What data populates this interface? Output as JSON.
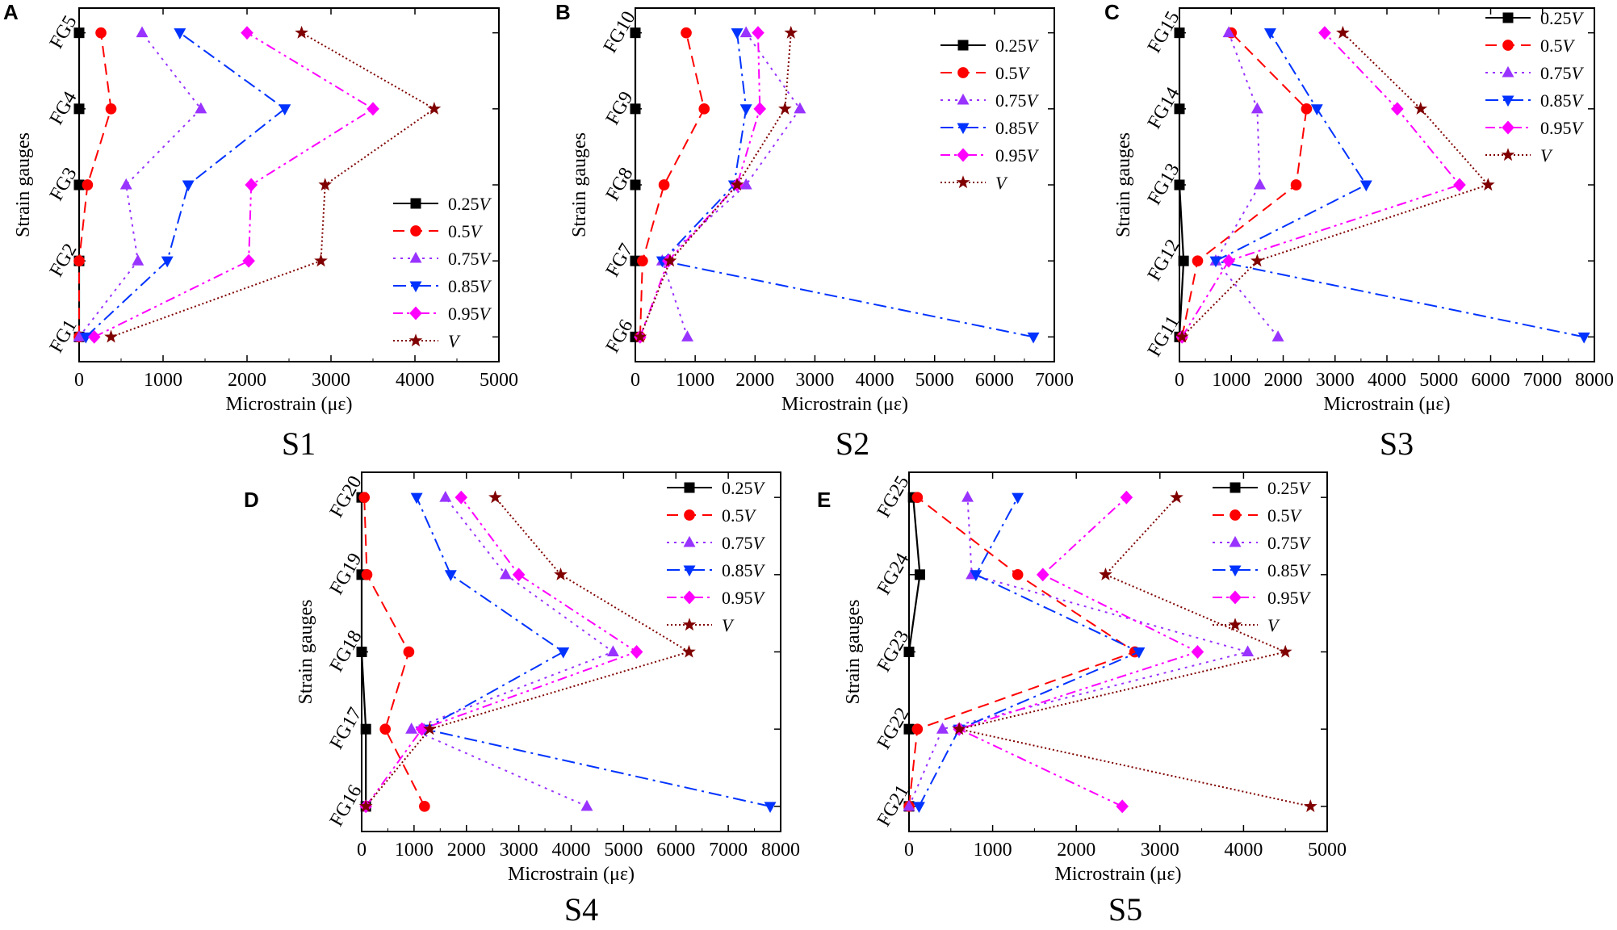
{
  "legend_entries": [
    {
      "key": "s025",
      "label": "0.25",
      "suffix": "V",
      "color": "#000000",
      "dash": "",
      "marker": "square"
    },
    {
      "key": "s05",
      "label": "0.5",
      "suffix": "V",
      "color": "#ff0000",
      "dash": "14 8",
      "marker": "circle"
    },
    {
      "key": "s075",
      "label": "0.75",
      "suffix": "V",
      "color": "#9933ff",
      "dash": "3 6",
      "marker": "triangle-up"
    },
    {
      "key": "s085",
      "label": "0.85",
      "suffix": "V",
      "color": "#0033ff",
      "dash": "16 6 3 6",
      "marker": "triangle-down"
    },
    {
      "key": "s095",
      "label": "0.95",
      "suffix": "V",
      "color": "#ff00ff",
      "dash": "12 5 3 5 3 5",
      "marker": "diamond"
    },
    {
      "key": "sV",
      "label": "",
      "suffix": "V",
      "color": "#800000",
      "dash": "2 3",
      "marker": "star"
    }
  ],
  "chart_data": [
    {
      "type": "line",
      "letter": "A",
      "title": "S1",
      "xlabel": "Microstrain (με)",
      "ylabel": "Strain gauges",
      "xlim": [
        0,
        5000
      ],
      "xticks": [
        0,
        1000,
        2000,
        3000,
        4000,
        5000
      ],
      "categories": [
        "FG1",
        "FG2",
        "FG3",
        "FG4",
        "FG5"
      ],
      "series": [
        {
          "name": "0.25V",
          "values": [
            0,
            0,
            0,
            0,
            0
          ]
        },
        {
          "name": "0.5V",
          "values": [
            0,
            0,
            100,
            380,
            260
          ]
        },
        {
          "name": "0.75V",
          "values": [
            0,
            700,
            560,
            1450,
            750
          ]
        },
        {
          "name": "0.85V",
          "values": [
            80,
            1050,
            1300,
            2450,
            1200
          ]
        },
        {
          "name": "0.95V",
          "values": [
            180,
            2020,
            2050,
            3500,
            2000
          ]
        },
        {
          "name": "V",
          "values": [
            380,
            2880,
            2930,
            4230,
            2650
          ]
        }
      ]
    },
    {
      "type": "line",
      "letter": "B",
      "title": "S2",
      "xlabel": "Microstrain (με)",
      "ylabel": "Strain gauges",
      "xlim": [
        0,
        7000
      ],
      "xticks": [
        0,
        1000,
        2000,
        3000,
        4000,
        5000,
        6000,
        7000
      ],
      "categories": [
        "FG6",
        "FG7",
        "FG8",
        "FG9",
        "FG10"
      ],
      "series": [
        {
          "name": "0.25V",
          "values": [
            0,
            0,
            0,
            0,
            0
          ]
        },
        {
          "name": "0.5V",
          "values": [
            80,
            120,
            480,
            1150,
            850
          ]
        },
        {
          "name": "0.75V",
          "values": [
            870,
            450,
            1850,
            2750,
            1850
          ]
        },
        {
          "name": "0.85V",
          "values": [
            6650,
            450,
            1650,
            1850,
            1700
          ]
        },
        {
          "name": "0.95V",
          "values": [
            80,
            550,
            1700,
            2080,
            2050
          ]
        },
        {
          "name": "V",
          "values": [
            80,
            580,
            1700,
            2500,
            2600
          ]
        }
      ]
    },
    {
      "type": "line",
      "letter": "C",
      "title": "S3",
      "xlabel": "Microstrain (με)",
      "ylabel": "Strain gauges",
      "xlim": [
        0,
        8000
      ],
      "xticks": [
        0,
        1000,
        2000,
        3000,
        4000,
        5000,
        6000,
        7000,
        8000
      ],
      "categories": [
        "FG11",
        "FG12",
        "FG13",
        "FG14",
        "FG15"
      ],
      "series": [
        {
          "name": "0.25V",
          "values": [
            0,
            80,
            0,
            0,
            0
          ]
        },
        {
          "name": "0.5V",
          "values": [
            50,
            350,
            2250,
            2450,
            1000
          ]
        },
        {
          "name": "0.75V",
          "values": [
            1900,
            700,
            1550,
            1500,
            950
          ]
        },
        {
          "name": "0.85V",
          "values": [
            7800,
            700,
            3600,
            2650,
            1750
          ]
        },
        {
          "name": "0.95V",
          "values": [
            50,
            950,
            5400,
            4200,
            2800
          ]
        },
        {
          "name": "V",
          "values": [
            50,
            1500,
            5950,
            4650,
            3150
          ]
        }
      ]
    },
    {
      "type": "line",
      "letter": "D",
      "title": "S4",
      "xlabel": "Microstrain (με)",
      "ylabel": "Strain gauges",
      "xlim": [
        0,
        8000
      ],
      "xticks": [
        0,
        1000,
        2000,
        3000,
        4000,
        5000,
        6000,
        7000,
        8000
      ],
      "categories": [
        "FG16",
        "FG17",
        "FG18",
        "FG19",
        "FG20"
      ],
      "series": [
        {
          "name": "0.25V",
          "values": [
            80,
            80,
            0,
            0,
            0
          ]
        },
        {
          "name": "0.5V",
          "values": [
            1200,
            450,
            900,
            100,
            50
          ]
        },
        {
          "name": "0.75V",
          "values": [
            4300,
            950,
            4800,
            2750,
            1600
          ]
        },
        {
          "name": "0.85V",
          "values": [
            7800,
            1200,
            3850,
            1700,
            1050
          ]
        },
        {
          "name": "0.95V",
          "values": [
            80,
            1150,
            5250,
            3000,
            1900
          ]
        },
        {
          "name": "V",
          "values": [
            80,
            1300,
            6250,
            3800,
            2550
          ]
        }
      ]
    },
    {
      "type": "line",
      "letter": "E",
      "title": "S5",
      "xlabel": "Microstrain (με)",
      "ylabel": "Strain gauges",
      "xlim": [
        0,
        5000
      ],
      "xticks": [
        0,
        1000,
        2000,
        3000,
        4000,
        5000
      ],
      "categories": [
        "FG21",
        "FG22",
        "FG23",
        "FG24",
        "FG25"
      ],
      "series": [
        {
          "name": "0.25V",
          "values": [
            0,
            0,
            0,
            130,
            50
          ]
        },
        {
          "name": "0.5V",
          "values": [
            0,
            100,
            2700,
            1300,
            100
          ]
        },
        {
          "name": "0.75V",
          "values": [
            0,
            400,
            4050,
            750,
            700
          ]
        },
        {
          "name": "0.85V",
          "values": [
            120,
            600,
            2750,
            800,
            1300
          ]
        },
        {
          "name": "0.95V",
          "values": [
            2550,
            600,
            3450,
            1600,
            2600
          ]
        },
        {
          "name": "V",
          "values": [
            4800,
            600,
            4500,
            2350,
            3200
          ]
        }
      ]
    }
  ]
}
